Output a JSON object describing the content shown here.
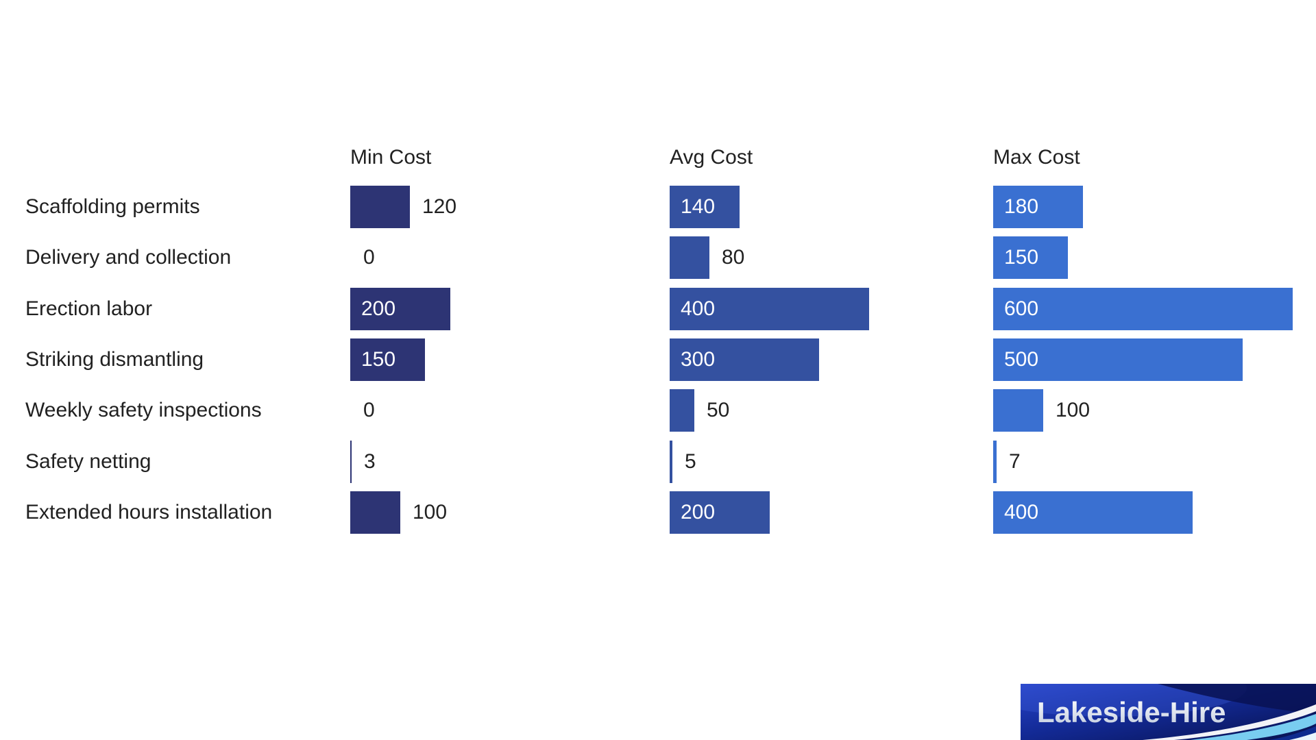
{
  "chart_data": {
    "type": "bar",
    "orientation": "horizontal",
    "title": "",
    "xlabel": "",
    "ylabel": "",
    "axis": {
      "min": 0,
      "max": 600,
      "gridlines": false
    },
    "legend_position": "column-headers-top",
    "value_labels": "on-bars",
    "categories": [
      "Scaffolding permits",
      "Delivery and collection",
      "Erection labor",
      "Striking dismantling",
      "Weekly safety inspections",
      "Safety netting",
      "Extended hours installation"
    ],
    "series": [
      {
        "name": "Min Cost",
        "color": "#2d3474",
        "values": [
          120,
          0,
          200,
          150,
          0,
          3,
          100
        ]
      },
      {
        "name": "Avg Cost",
        "color": "#3451a0",
        "values": [
          140,
          80,
          400,
          300,
          50,
          5,
          200
        ]
      },
      {
        "name": "Max Cost",
        "color": "#3a70d1",
        "values": [
          180,
          150,
          600,
          500,
          100,
          7,
          400
        ]
      }
    ],
    "label_color_inside": "#ffffff",
    "label_color_outside": "#212121",
    "text_color": "#212121"
  },
  "logo": {
    "text": "Lakeside-Hire",
    "banner_color_left": "#2743c9",
    "banner_color_right": "#07114e",
    "swoosh_cyan": "#79cdf0",
    "swoosh_white": "#f2fafe"
  }
}
